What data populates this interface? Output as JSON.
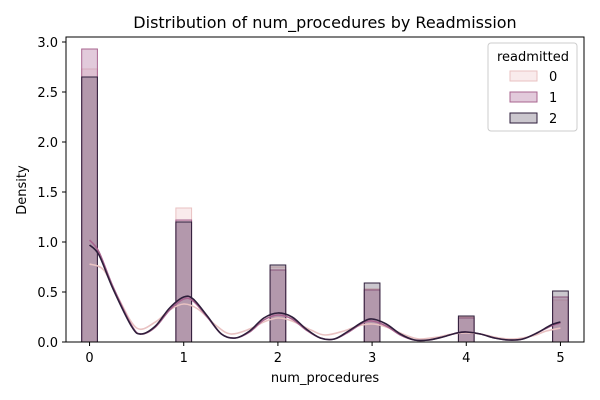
{
  "chart_data": {
    "type": "histogram",
    "title": "Distribution of num_procedures by Readmission",
    "xlabel": "num_procedures",
    "ylabel": "Density",
    "xlim": [
      -0.25,
      5.25
    ],
    "ylim": [
      0,
      3.05
    ],
    "xticks": [
      "0",
      "1",
      "2",
      "3",
      "4",
      "5"
    ],
    "yticks": [
      "0.0",
      "0.5",
      "1.0",
      "1.5",
      "2.0",
      "2.5",
      "3.0"
    ],
    "bin_width": 0.1667,
    "grid": false,
    "legend": {
      "title": "readmitted",
      "position": "top-right",
      "entries": [
        "0",
        "1",
        "2"
      ]
    },
    "series": [
      {
        "name": "0",
        "fill": "#f5dde0",
        "fill_opacity": 0.6,
        "stroke": "#e9c2c2",
        "bars": [
          {
            "x": 0,
            "density": 2.73
          },
          {
            "x": 1,
            "density": 1.34
          },
          {
            "x": 2,
            "density": 0.75
          },
          {
            "x": 3,
            "density": 0.53
          },
          {
            "x": 4,
            "density": 0.25
          },
          {
            "x": 5,
            "density": 0.42
          }
        ],
        "kde": [
          [
            0,
            0.78
          ],
          [
            0.15,
            0.72
          ],
          [
            0.3,
            0.45
          ],
          [
            0.5,
            0.14
          ],
          [
            0.7,
            0.2
          ],
          [
            0.85,
            0.32
          ],
          [
            1,
            0.38
          ],
          [
            1.15,
            0.33
          ],
          [
            1.35,
            0.16
          ],
          [
            1.5,
            0.08
          ],
          [
            1.7,
            0.13
          ],
          [
            1.85,
            0.2
          ],
          [
            2,
            0.24
          ],
          [
            2.15,
            0.21
          ],
          [
            2.35,
            0.12
          ],
          [
            2.5,
            0.07
          ],
          [
            2.7,
            0.11
          ],
          [
            2.85,
            0.16
          ],
          [
            3,
            0.18
          ],
          [
            3.15,
            0.15
          ],
          [
            3.35,
            0.07
          ],
          [
            3.5,
            0.03
          ],
          [
            3.7,
            0.05
          ],
          [
            3.85,
            0.08
          ],
          [
            4,
            0.09
          ],
          [
            4.15,
            0.08
          ],
          [
            4.35,
            0.04
          ],
          [
            4.5,
            0.03
          ],
          [
            4.7,
            0.06
          ],
          [
            4.85,
            0.11
          ],
          [
            5,
            0.14
          ]
        ]
      },
      {
        "name": "1",
        "fill": "#c695b8",
        "fill_opacity": 0.5,
        "stroke": "#a8648f",
        "bars": [
          {
            "x": 0,
            "density": 2.93
          },
          {
            "x": 1,
            "density": 1.22
          },
          {
            "x": 2,
            "density": 0.72
          },
          {
            "x": 3,
            "density": 0.52
          },
          {
            "x": 4,
            "density": 0.24
          },
          {
            "x": 5,
            "density": 0.45
          }
        ],
        "kde": [
          [
            0,
            1.02
          ],
          [
            0.1,
            0.9
          ],
          [
            0.25,
            0.55
          ],
          [
            0.45,
            0.16
          ],
          [
            0.55,
            0.08
          ],
          [
            0.7,
            0.15
          ],
          [
            0.85,
            0.32
          ],
          [
            1,
            0.43
          ],
          [
            1.1,
            0.41
          ],
          [
            1.25,
            0.25
          ],
          [
            1.4,
            0.08
          ],
          [
            1.55,
            0.04
          ],
          [
            1.7,
            0.1
          ],
          [
            1.85,
            0.22
          ],
          [
            2,
            0.27
          ],
          [
            2.15,
            0.23
          ],
          [
            2.3,
            0.12
          ],
          [
            2.45,
            0.04
          ],
          [
            2.6,
            0.03
          ],
          [
            2.75,
            0.1
          ],
          [
            2.9,
            0.19
          ],
          [
            3,
            0.21
          ],
          [
            3.15,
            0.16
          ],
          [
            3.3,
            0.07
          ],
          [
            3.45,
            0.02
          ],
          [
            3.6,
            0.02
          ],
          [
            3.75,
            0.05
          ],
          [
            3.9,
            0.09
          ],
          [
            4,
            0.1
          ],
          [
            4.15,
            0.08
          ],
          [
            4.3,
            0.04
          ],
          [
            4.45,
            0.02
          ],
          [
            4.6,
            0.03
          ],
          [
            4.75,
            0.09
          ],
          [
            4.9,
            0.16
          ],
          [
            5,
            0.19
          ]
        ]
      },
      {
        "name": "2",
        "fill": "#2e1e3b",
        "fill_opacity": 0.25,
        "stroke": "#2e1e3b",
        "bars": [
          {
            "x": 0,
            "density": 2.65
          },
          {
            "x": 1,
            "density": 1.2
          },
          {
            "x": 2,
            "density": 0.77
          },
          {
            "x": 3,
            "density": 0.59
          },
          {
            "x": 4,
            "density": 0.26
          },
          {
            "x": 5,
            "density": 0.51
          }
        ],
        "kde": [
          [
            0,
            0.97
          ],
          [
            0.1,
            0.87
          ],
          [
            0.25,
            0.53
          ],
          [
            0.45,
            0.15
          ],
          [
            0.55,
            0.08
          ],
          [
            0.7,
            0.16
          ],
          [
            0.85,
            0.34
          ],
          [
            1,
            0.45
          ],
          [
            1.1,
            0.43
          ],
          [
            1.25,
            0.26
          ],
          [
            1.4,
            0.08
          ],
          [
            1.55,
            0.04
          ],
          [
            1.7,
            0.11
          ],
          [
            1.85,
            0.24
          ],
          [
            2,
            0.29
          ],
          [
            2.15,
            0.25
          ],
          [
            2.3,
            0.13
          ],
          [
            2.45,
            0.04
          ],
          [
            2.6,
            0.03
          ],
          [
            2.75,
            0.11
          ],
          [
            2.9,
            0.2
          ],
          [
            3,
            0.23
          ],
          [
            3.15,
            0.18
          ],
          [
            3.3,
            0.08
          ],
          [
            3.45,
            0.02
          ],
          [
            3.6,
            0.02
          ],
          [
            3.75,
            0.05
          ],
          [
            3.9,
            0.09
          ],
          [
            4,
            0.1
          ],
          [
            4.15,
            0.08
          ],
          [
            4.3,
            0.04
          ],
          [
            4.45,
            0.02
          ],
          [
            4.6,
            0.03
          ],
          [
            4.75,
            0.09
          ],
          [
            4.9,
            0.17
          ],
          [
            5,
            0.2
          ]
        ]
      }
    ]
  }
}
